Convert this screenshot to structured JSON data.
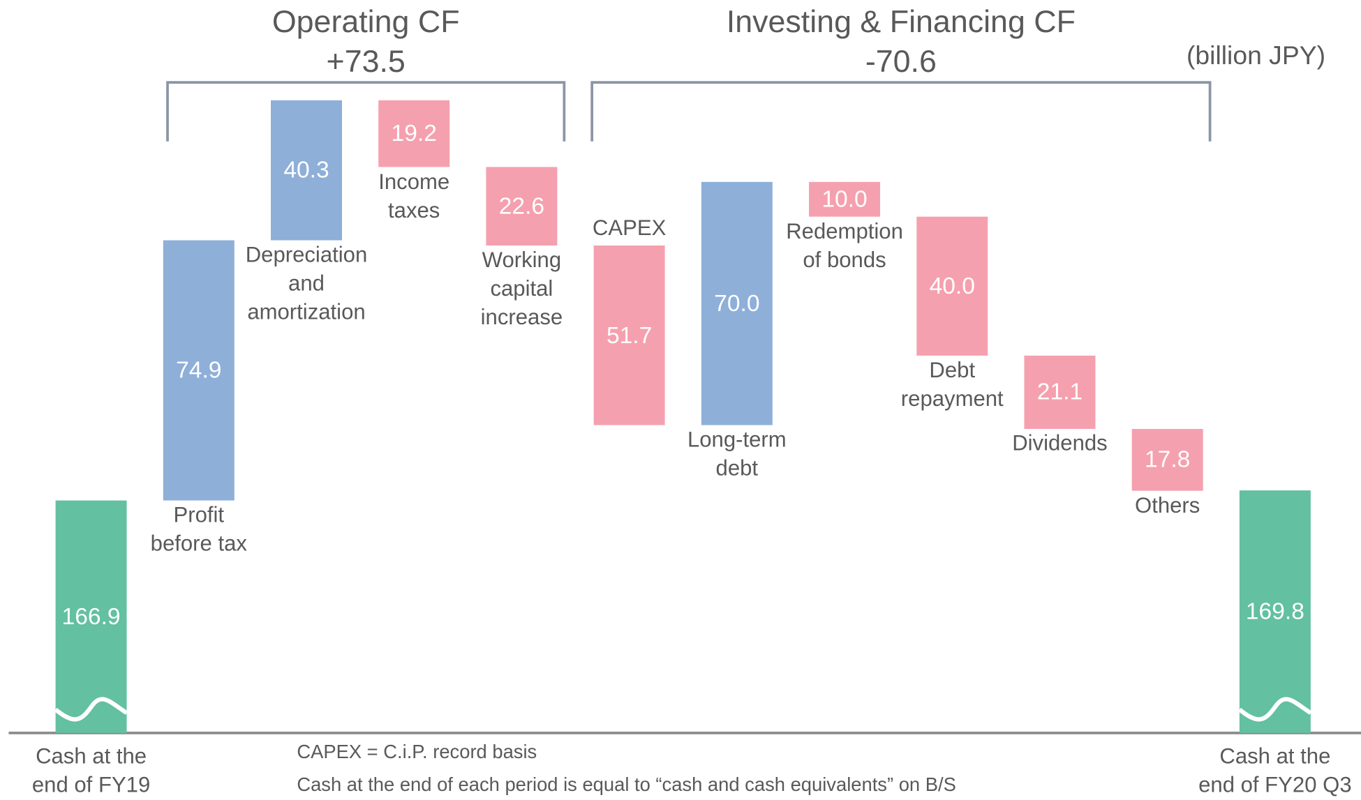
{
  "chart_data": {
    "type": "waterfall",
    "unit_label": "(billion JPY)",
    "categories": [
      "Cash at the\nend of FY19",
      "Profit\nbefore tax",
      "Depreciation\nand\namortization",
      "Income\ntaxes",
      "Working\ncapital\nincrease",
      "CAPEX",
      "Long-term\ndebt",
      "Redemption\nof bonds",
      "Debt\nrepayment",
      "Dividends",
      "Others",
      "Cash at the\nend of FY20 Q3"
    ],
    "values": [
      166.9,
      74.9,
      40.3,
      -19.2,
      -22.6,
      -51.7,
      70.0,
      -10.0,
      -40.0,
      -21.1,
      -17.8,
      169.8
    ],
    "value_labels": [
      "166.9",
      "74.9",
      "40.3",
      "19.2",
      "22.6",
      "51.7",
      "70.0",
      "10.0",
      "40.0",
      "21.1",
      "17.8",
      "169.8"
    ],
    "totals": [
      0,
      11
    ],
    "colors": {
      "increase": "#8eafd8",
      "decrease": "#f5a0ae",
      "total": "#63c0a0"
    },
    "groups": [
      {
        "title": "Operating CF",
        "value_label": "+73.5",
        "from": 1,
        "to": 4
      },
      {
        "title": "Investing & Financing CF",
        "value_label": "-70.6",
        "from": 5,
        "to": 10
      }
    ],
    "notes": [
      "CAPEX = C.i.P.  record basis",
      "Cash at the end of each period is equal to “cash and cash equivalents” on B/S"
    ]
  }
}
